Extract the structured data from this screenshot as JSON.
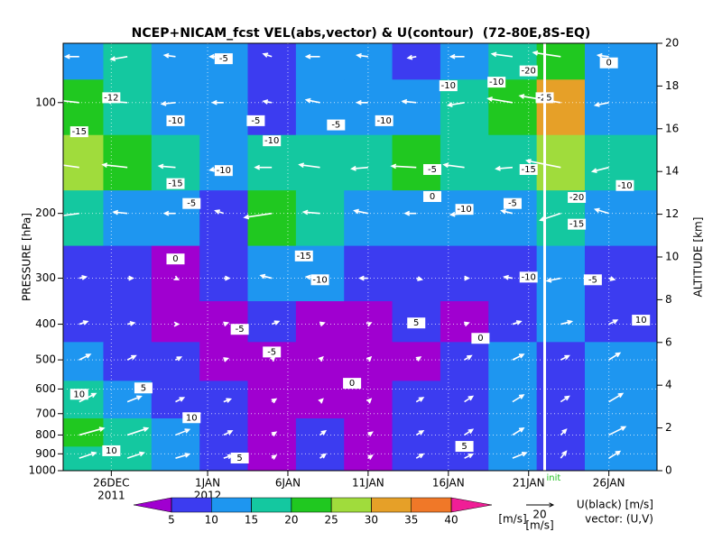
{
  "chart_data": {
    "type": "contour",
    "title": "NCEP+NICAM_fcst VEL(abs,vector) & U(contour)  (72-80E,8S-EQ)",
    "ylabel": "PRESSURE [hPa]",
    "y2label": "ALTITUDE [km]",
    "xlim": [
      "2011-12-23",
      "2012-01-29"
    ],
    "xticks": [
      {
        "value": "2011-12-26",
        "label": "26DEC"
      },
      {
        "value": "2012-01-01",
        "label": "1JAN"
      },
      {
        "value": "2012-01-06",
        "label": "6JAN"
      },
      {
        "value": "2012-01-11",
        "label": "11JAN"
      },
      {
        "value": "2012-01-16",
        "label": "16JAN"
      },
      {
        "value": "2012-01-21",
        "label": "21JAN"
      },
      {
        "value": "2012-01-26",
        "label": "26JAN"
      }
    ],
    "x_year_labels": [
      "2011",
      "2012"
    ],
    "ylim": [
      1000,
      69
    ],
    "log_y": true,
    "yticks": [
      100,
      200,
      300,
      400,
      500,
      600,
      700,
      800,
      900,
      1000
    ],
    "y2lim": [
      0,
      20
    ],
    "y2ticks": [
      0,
      2,
      4,
      6,
      8,
      10,
      12,
      14,
      16,
      18,
      20
    ],
    "grid": true,
    "x": [
      "2011-12-24",
      "2011-12-27",
      "2011-12-30",
      "2012-01-02",
      "2012-01-05",
      "2012-01-08",
      "2012-01-11",
      "2012-01-14",
      "2012-01-17",
      "2012-01-20",
      "2012-01-23",
      "2012-01-26"
    ],
    "y": [
      75,
      100,
      150,
      200,
      300,
      400,
      500,
      650,
      800,
      925
    ],
    "speed": [
      [
        12,
        15,
        10,
        12,
        8,
        12,
        10,
        8,
        12,
        18,
        22,
        10
      ],
      [
        20,
        18,
        12,
        10,
        8,
        12,
        10,
        12,
        15,
        20,
        32,
        12
      ],
      [
        25,
        20,
        15,
        12,
        15,
        18,
        15,
        20,
        18,
        15,
        28,
        15
      ],
      [
        18,
        12,
        10,
        8,
        22,
        15,
        12,
        10,
        12,
        10,
        18,
        12
      ],
      [
        8,
        6,
        4,
        6,
        10,
        12,
        8,
        6,
        6,
        8,
        12,
        6
      ],
      [
        8,
        6,
        3,
        4,
        6,
        4,
        3,
        6,
        4,
        8,
        10,
        8
      ],
      [
        10,
        8,
        5,
        4,
        3,
        3,
        3,
        4,
        6,
        10,
        8,
        10
      ],
      [
        15,
        12,
        8,
        6,
        4,
        3,
        3,
        6,
        8,
        10,
        8,
        12
      ],
      [
        20,
        18,
        12,
        8,
        4,
        5,
        4,
        6,
        8,
        10,
        6,
        14
      ],
      [
        15,
        15,
        12,
        8,
        4,
        5,
        4,
        6,
        8,
        12,
        6,
        10
      ]
    ],
    "u": [
      [
        -10,
        -12,
        -8,
        -10,
        -6,
        -10,
        -8,
        -6,
        -10,
        -15,
        -20,
        -8
      ],
      [
        -18,
        -15,
        -10,
        -8,
        -6,
        -10,
        -8,
        -10,
        -12,
        -18,
        -30,
        -10
      ],
      [
        -22,
        -18,
        -12,
        -10,
        -12,
        -15,
        -12,
        -18,
        -15,
        -12,
        -25,
        -12
      ],
      [
        -15,
        -10,
        -8,
        -6,
        -20,
        -12,
        -10,
        -8,
        -10,
        -8,
        -15,
        -10
      ],
      [
        5,
        4,
        2,
        4,
        -8,
        -10,
        -6,
        4,
        3,
        -6,
        -10,
        4
      ],
      [
        6,
        5,
        2,
        3,
        5,
        3,
        2,
        5,
        3,
        6,
        8,
        6
      ],
      [
        8,
        6,
        4,
        3,
        2,
        2,
        2,
        3,
        5,
        8,
        6,
        8
      ],
      [
        12,
        10,
        6,
        5,
        3,
        2,
        2,
        5,
        6,
        8,
        6,
        10
      ],
      [
        18,
        15,
        10,
        6,
        3,
        4,
        3,
        5,
        6,
        8,
        4,
        12
      ],
      [
        12,
        12,
        10,
        6,
        3,
        4,
        3,
        5,
        6,
        10,
        4,
        8
      ]
    ],
    "v": [
      [
        0,
        -2,
        1,
        0,
        2,
        0,
        1,
        -1,
        0,
        2,
        3,
        1
      ],
      [
        2,
        1,
        -1,
        0,
        1,
        2,
        0,
        1,
        -2,
        3,
        5,
        -2
      ],
      [
        3,
        2,
        1,
        -2,
        0,
        2,
        -1,
        1,
        2,
        -1,
        5,
        -3
      ],
      [
        -2,
        1,
        0,
        2,
        -3,
        1,
        2,
        0,
        -1,
        2,
        -5,
        3
      ],
      [
        1,
        0,
        -1,
        0,
        2,
        1,
        0,
        -1,
        0,
        1,
        -2,
        -1
      ],
      [
        2,
        1,
        0,
        1,
        2,
        1,
        1,
        2,
        1,
        2,
        2,
        3
      ],
      [
        4,
        3,
        2,
        1,
        2,
        2,
        2,
        2,
        3,
        4,
        3,
        5
      ],
      [
        6,
        4,
        3,
        2,
        2,
        2,
        2,
        3,
        4,
        5,
        4,
        6
      ],
      [
        5,
        5,
        4,
        3,
        2,
        3,
        2,
        3,
        4,
        5,
        4,
        6
      ],
      [
        4,
        4,
        3,
        2,
        2,
        3,
        2,
        3,
        3,
        4,
        5,
        5
      ]
    ],
    "levels": [
      5,
      10,
      15,
      20,
      25,
      30,
      35,
      40
    ],
    "colors": [
      "#a000d0",
      "#3c3cf0",
      "#1e96f0",
      "#14c8a0",
      "#20c820",
      "#a0dc3c",
      "#e6a028",
      "#f07828",
      "#f01e96"
    ],
    "colorbar_unit": "[m/s]",
    "contour_labels": [
      {
        "x": "2012-01-02",
        "y": 76,
        "value": -5
      },
      {
        "x": "2011-12-26",
        "y": 97,
        "value": -12
      },
      {
        "x": "2011-12-24",
        "y": 120,
        "value": -15
      },
      {
        "x": "2011-12-30",
        "y": 112,
        "value": -10
      },
      {
        "x": "2011-12-30",
        "y": 166,
        "value": -15
      },
      {
        "x": "2012-01-02",
        "y": 153,
        "value": -10
      },
      {
        "x": "2011-12-31",
        "y": 188,
        "value": -5
      },
      {
        "x": "2012-01-04",
        "y": 112,
        "value": -5
      },
      {
        "x": "2012-01-05",
        "y": 127,
        "value": -10
      },
      {
        "x": "2012-01-09",
        "y": 115,
        "value": -5
      },
      {
        "x": "2012-01-12",
        "y": 112,
        "value": -10
      },
      {
        "x": "2012-01-07",
        "y": 261,
        "value": -15
      },
      {
        "x": "2012-01-08",
        "y": 303,
        "value": -10
      },
      {
        "x": "2011-12-30",
        "y": 266,
        "value": 0
      },
      {
        "x": "2012-01-03",
        "y": 413,
        "value": -5
      },
      {
        "x": "2012-01-05",
        "y": 476,
        "value": -5
      },
      {
        "x": "2012-01-10",
        "y": 579,
        "value": 0
      },
      {
        "x": "2012-01-14",
        "y": 397,
        "value": 5
      },
      {
        "x": "2012-01-18",
        "y": 437,
        "value": 0
      },
      {
        "x": "2011-12-24",
        "y": 620,
        "value": 10
      },
      {
        "x": "2011-12-28",
        "y": 596,
        "value": 5
      },
      {
        "x": "2011-12-31",
        "y": 718,
        "value": 10
      },
      {
        "x": "2011-12-26",
        "y": 883,
        "value": 10
      },
      {
        "x": "2012-01-03",
        "y": 924,
        "value": 5
      },
      {
        "x": "2012-01-17",
        "y": 859,
        "value": 5
      },
      {
        "x": "2012-01-21",
        "y": 82,
        "value": -20
      },
      {
        "x": "2012-01-22",
        "y": 97,
        "value": -25
      },
      {
        "x": "2012-01-21",
        "y": 152,
        "value": -15
      },
      {
        "x": "2012-01-24",
        "y": 181,
        "value": -20
      },
      {
        "x": "2012-01-24",
        "y": 214,
        "value": -15
      },
      {
        "x": "2012-01-16",
        "y": 90,
        "value": -10
      },
      {
        "x": "2012-01-19",
        "y": 88,
        "value": -10
      },
      {
        "x": "2012-01-17",
        "y": 195,
        "value": -10
      },
      {
        "x": "2012-01-20",
        "y": 188,
        "value": -5
      },
      {
        "x": "2012-01-15",
        "y": 152,
        "value": -5
      },
      {
        "x": "2012-01-15",
        "y": 180,
        "value": 0
      },
      {
        "x": "2012-01-21",
        "y": 298,
        "value": -10
      },
      {
        "x": "2012-01-25",
        "y": 303,
        "value": -5
      },
      {
        "x": "2012-01-27",
        "y": 168,
        "value": -10
      },
      {
        "x": "2012-01-26",
        "y": 78,
        "value": 0
      },
      {
        "x": "2012-01-28",
        "y": 390,
        "value": 10
      }
    ],
    "init": {
      "x": "2012-01-22",
      "label": "init"
    },
    "vector_ref": 20,
    "vector_ref_unit": "[m/s]",
    "legend_contour": "U(black) [m/s]",
    "legend_vector": "vector: (U,V)"
  }
}
